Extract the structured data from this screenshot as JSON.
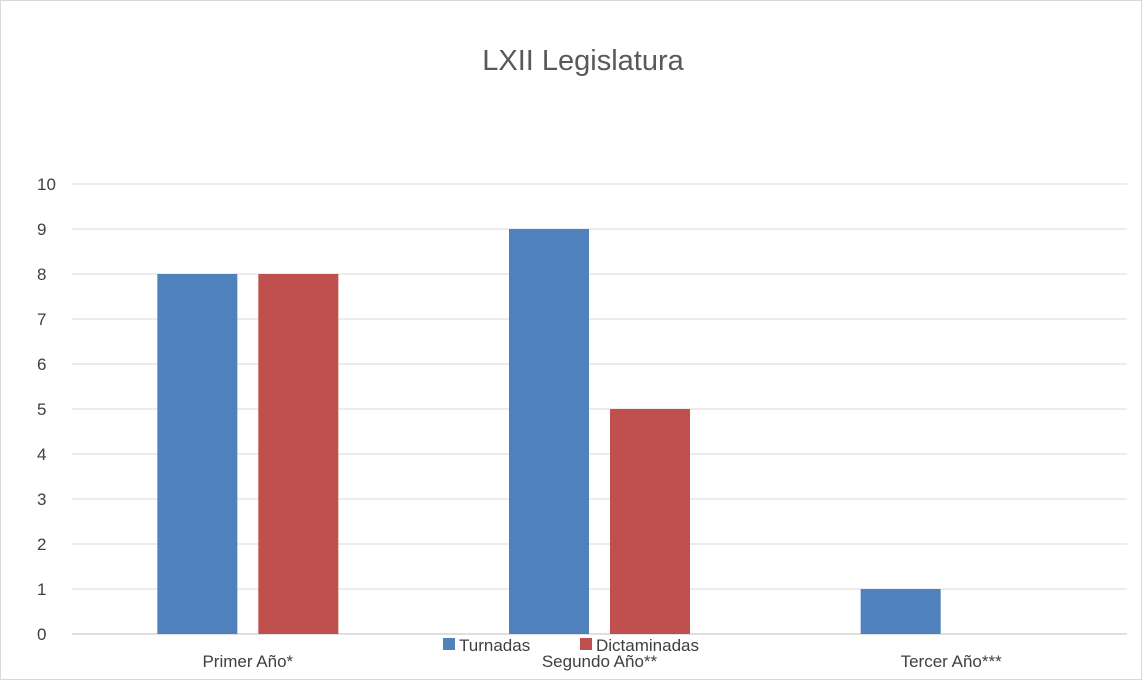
{
  "chart_data": {
    "type": "bar",
    "title": "LXII Legislatura",
    "categories": [
      "Primer Año*",
      "Segundo Año**",
      "Tercer Año***"
    ],
    "series": [
      {
        "name": "Turnadas",
        "values": [
          8,
          9,
          1
        ],
        "color": "#4F81BD"
      },
      {
        "name": "Dictaminadas",
        "values": [
          8,
          5,
          0
        ],
        "color": "#C0504D"
      }
    ],
    "ylim": [
      0,
      10
    ],
    "yticks": [
      0,
      1,
      2,
      3,
      4,
      5,
      6,
      7,
      8,
      9,
      10
    ],
    "grid": true,
    "legend_position": "bottom"
  }
}
